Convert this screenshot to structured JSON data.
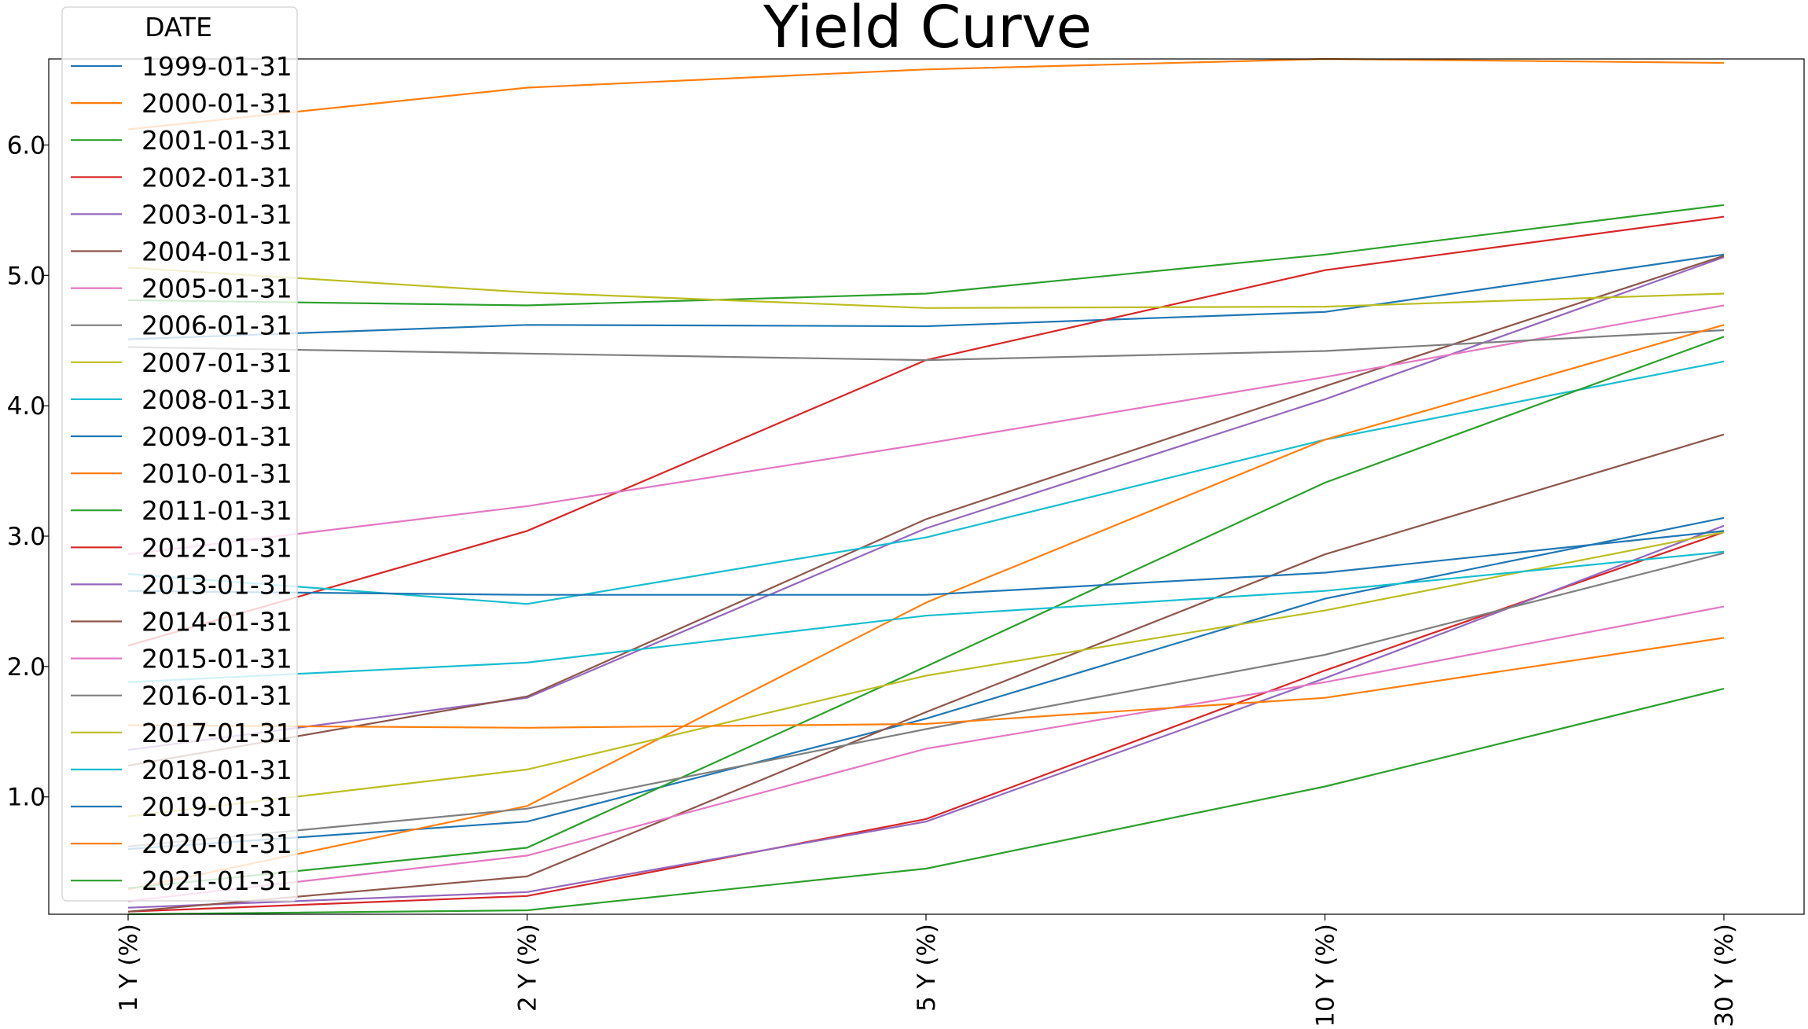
{
  "chart_data": {
    "type": "line",
    "title": "Yield Curve",
    "xlabel": "",
    "ylabel": "",
    "categories": [
      "1 Y (%)",
      "2 Y (%)",
      "5 Y (%)",
      "10 Y (%)",
      "30 Y (%)"
    ],
    "ylim": [
      0.1,
      6.66
    ],
    "yticks": [
      1.0,
      2.0,
      3.0,
      4.0,
      5.0,
      6.0
    ],
    "ytick_labels": [
      "1.0",
      "2.0",
      "3.0",
      "4.0",
      "5.0",
      "6.0"
    ],
    "grid": false,
    "legend": {
      "title": "DATE",
      "position": "top-left"
    },
    "series": [
      {
        "name": "1999-01-31",
        "color": "#1f77b4",
        "values": [
          4.51,
          4.62,
          4.61,
          4.72,
          5.16
        ]
      },
      {
        "name": "2000-01-31",
        "color": "#ff7f0e",
        "values": [
          6.12,
          6.44,
          6.58,
          6.66,
          6.63
        ]
      },
      {
        "name": "2001-01-31",
        "color": "#2ca02c",
        "values": [
          4.81,
          4.77,
          4.86,
          5.16,
          5.54
        ]
      },
      {
        "name": "2002-01-31",
        "color": "#d62728",
        "values": [
          2.16,
          3.04,
          4.35,
          5.04,
          5.45
        ]
      },
      {
        "name": "2003-01-31",
        "color": "#9467bd",
        "values": [
          1.36,
          1.76,
          3.06,
          4.05,
          5.14
        ]
      },
      {
        "name": "2004-01-31",
        "color": "#8c564b",
        "values": [
          1.24,
          1.77,
          3.13,
          4.15,
          5.15
        ]
      },
      {
        "name": "2005-01-31",
        "color": "#e377c2",
        "values": [
          2.86,
          3.23,
          3.71,
          4.22,
          4.77
        ]
      },
      {
        "name": "2006-01-31",
        "color": "#7f7f7f",
        "values": [
          4.45,
          4.4,
          4.35,
          4.42,
          4.58
        ]
      },
      {
        "name": "2007-01-31",
        "color": "#bcbd22",
        "values": [
          5.06,
          4.87,
          4.75,
          4.76,
          4.86
        ]
      },
      {
        "name": "2008-01-31",
        "color": "#17becf",
        "values": [
          2.71,
          2.48,
          2.99,
          3.74,
          4.34
        ]
      },
      {
        "name": "2009-01-31",
        "color": "#1f77b4",
        "values": [
          0.6,
          0.81,
          1.6,
          2.52,
          3.14
        ]
      },
      {
        "name": "2010-01-31",
        "color": "#ff7f0e",
        "values": [
          0.29,
          0.93,
          2.49,
          3.74,
          4.62
        ]
      },
      {
        "name": "2011-01-31",
        "color": "#2ca02c",
        "values": [
          0.3,
          0.61,
          2.0,
          3.41,
          4.53
        ]
      },
      {
        "name": "2012-01-31",
        "color": "#d62728",
        "values": [
          0.12,
          0.24,
          0.83,
          1.97,
          3.03
        ]
      },
      {
        "name": "2013-01-31",
        "color": "#9467bd",
        "values": [
          0.15,
          0.27,
          0.81,
          1.91,
          3.08
        ]
      },
      {
        "name": "2014-01-31",
        "color": "#8c564b",
        "values": [
          0.12,
          0.39,
          1.65,
          2.86,
          3.78
        ]
      },
      {
        "name": "2015-01-31",
        "color": "#e377c2",
        "values": [
          0.2,
          0.55,
          1.37,
          1.88,
          2.46
        ]
      },
      {
        "name": "2016-01-31",
        "color": "#7f7f7f",
        "values": [
          0.62,
          0.91,
          1.52,
          2.09,
          2.87
        ]
      },
      {
        "name": "2017-01-31",
        "color": "#bcbd22",
        "values": [
          0.85,
          1.21,
          1.93,
          2.43,
          3.03
        ]
      },
      {
        "name": "2018-01-31",
        "color": "#17becf",
        "values": [
          1.88,
          2.03,
          2.39,
          2.58,
          2.88
        ]
      },
      {
        "name": "2019-01-31",
        "color": "#1f77b4",
        "values": [
          2.58,
          2.55,
          2.55,
          2.72,
          3.04
        ]
      },
      {
        "name": "2020-01-31",
        "color": "#ff7f0e",
        "values": [
          1.55,
          1.53,
          1.56,
          1.76,
          2.22
        ]
      },
      {
        "name": "2021-01-31",
        "color": "#2ca02c",
        "values": [
          0.1,
          0.13,
          0.45,
          1.08,
          1.83
        ]
      }
    ]
  }
}
